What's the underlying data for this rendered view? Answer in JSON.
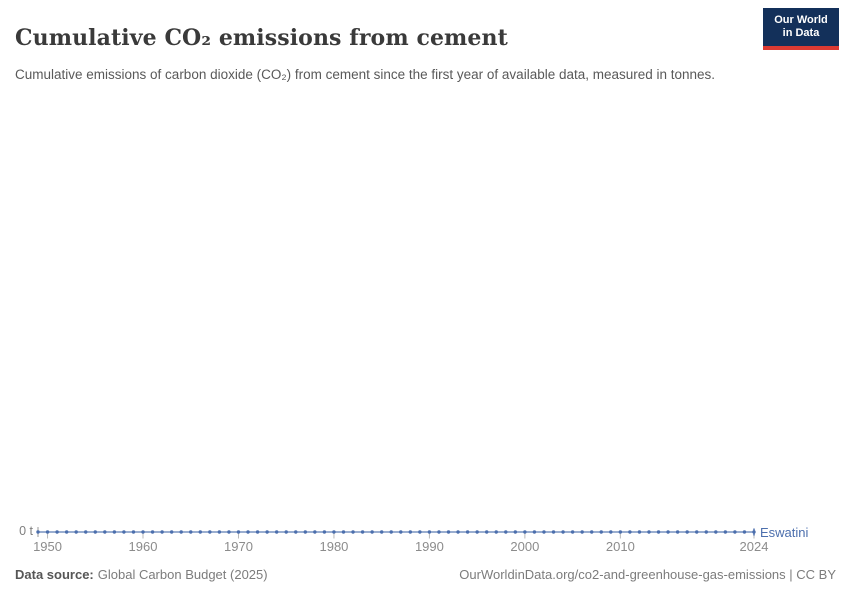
{
  "header": {
    "title": "Cumulative CO₂ emissions from cement",
    "subtitle": "Cumulative emissions of carbon dioxide (CO₂) from cement since the first year of available data, measured in tonnes.",
    "logo": {
      "line1": "Our World",
      "line2": "in Data",
      "bg_color": "#13305A",
      "bar_color": "#DC3A32"
    }
  },
  "chart_data": {
    "type": "line",
    "title": "Cumulative CO₂ emissions from cement",
    "xlabel": "",
    "ylabel": "",
    "unit": "t",
    "grid": false,
    "markers": true,
    "legend_position": "line-end-label",
    "x_range": {
      "start_year": 1949,
      "end_year": 2024
    },
    "x_ticks": [
      1950,
      1960,
      1970,
      1980,
      1990,
      2000,
      2010,
      2024
    ],
    "y_ticks": [
      "0 t"
    ],
    "y_tick_label": "0 t",
    "ylim": [
      0,
      0
    ],
    "series": [
      {
        "name": "Eswatini",
        "color": "#4C6FAD",
        "values": [
          0,
          0,
          0,
          0,
          0,
          0,
          0,
          0,
          0,
          0,
          0,
          0,
          0,
          0,
          0,
          0,
          0,
          0,
          0,
          0,
          0,
          0,
          0,
          0,
          0,
          0,
          0,
          0,
          0,
          0,
          0,
          0,
          0,
          0,
          0,
          0,
          0,
          0,
          0,
          0,
          0,
          0,
          0,
          0,
          0,
          0,
          0,
          0,
          0,
          0,
          0,
          0,
          0,
          0,
          0,
          0,
          0,
          0,
          0,
          0,
          0,
          0,
          0,
          0,
          0,
          0,
          0,
          0,
          0,
          0,
          0,
          0,
          0,
          0,
          0,
          0
        ]
      }
    ]
  },
  "footer": {
    "data_source_label": "Data source:",
    "data_source_value": "Global Carbon Budget (2025)",
    "credit": "OurWorldinData.org/co2-and-greenhouse-gas-emissions | CC BY"
  },
  "colors": {
    "series": "#4C6FAD",
    "axis_text": "#8c8c8c",
    "tick": "#b8b8b8",
    "title_text": "#3a3a3a",
    "subtitle_text": "#595959"
  }
}
